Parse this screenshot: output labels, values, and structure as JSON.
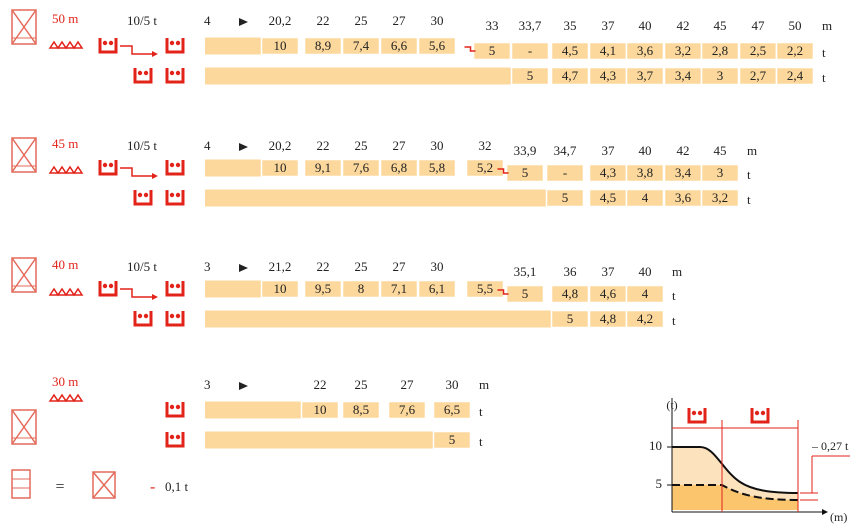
{
  "sections": [
    {
      "jib": "50 m",
      "trolley": "10/5 t",
      "min_radius": "4",
      "radii": [
        "20,2",
        "22",
        "25",
        "27",
        "30",
        "33",
        "33,7",
        "35",
        "37",
        "40",
        "42",
        "45",
        "47",
        "50"
      ],
      "row1": [
        "10",
        "8,9",
        "7,4",
        "6,6",
        "5,6",
        "5",
        "-",
        "4,5",
        "4,1",
        "3,6",
        "3,2",
        "2,8",
        "2,5",
        "2,2"
      ],
      "row2": [
        "5",
        "4,7",
        "4,3",
        "3,7",
        "3,4",
        "3",
        "2,7",
        "2,4"
      ],
      "unit_m": "m",
      "unit_t": "t"
    },
    {
      "jib": "45 m",
      "trolley": "10/5 t",
      "min_radius": "4",
      "radii": [
        "20,2",
        "22",
        "25",
        "27",
        "30",
        "32",
        "33,9",
        "34,7",
        "37",
        "40",
        "42",
        "45"
      ],
      "row1": [
        "10",
        "9,1",
        "7,6",
        "6,8",
        "5,8",
        "5,2",
        "5",
        "-",
        "4,3",
        "3,8",
        "3,4",
        "3"
      ],
      "row2": [
        "5",
        "4,5",
        "4",
        "3,6",
        "3,2"
      ],
      "unit_m": "m",
      "unit_t": "t"
    },
    {
      "jib": "40 m",
      "trolley": "10/5 t",
      "min_radius": "3",
      "radii": [
        "21,2",
        "22",
        "25",
        "27",
        "30",
        null,
        "35,1",
        "36",
        "37",
        "40"
      ],
      "row1": [
        "10",
        "9,5",
        "8",
        "7,1",
        "6,1",
        "5,5",
        "5",
        "4,8",
        "4,6",
        "4"
      ],
      "row2": [
        "5",
        "4,8",
        "4,2"
      ],
      "unit_m": "m",
      "unit_t": "t"
    },
    {
      "jib": "30 m",
      "min_radius": "3",
      "radii": [
        "22",
        "25",
        "27",
        "30"
      ],
      "row1": [
        "10",
        "8,5",
        "7,6",
        "6,5"
      ],
      "row2": [
        "5"
      ],
      "unit_m": "m",
      "unit_t": "t"
    }
  ],
  "legend": {
    "equals": "=",
    "minus": "-",
    "value": "0,1 t"
  },
  "diagram": {
    "y_unit": "(t)",
    "ticks": [
      "10",
      "5"
    ],
    "note": "– 0,27 t",
    "x_unit": "(m)"
  }
}
